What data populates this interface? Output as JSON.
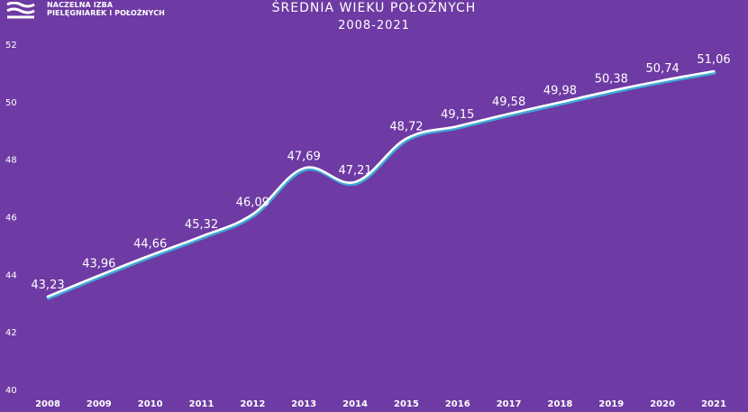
{
  "logo": {
    "line1": "NACZELNA IZBA",
    "line2": "PIELĘGNIAREK I POŁOŻNYCH"
  },
  "chart_data": {
    "type": "line",
    "title": "ŚREDNIA WIEKU POŁOŻNYCH",
    "subtitle": "2008-2021",
    "x": [
      "2008",
      "2009",
      "2010",
      "2011",
      "2012",
      "2013",
      "2014",
      "2015",
      "2016",
      "2017",
      "2018",
      "2019",
      "2020",
      "2021"
    ],
    "series": [
      {
        "values": [
          43.23,
          43.96,
          44.66,
          45.32,
          46.09,
          47.69,
          47.21,
          48.72,
          49.15,
          49.58,
          49.98,
          50.38,
          50.74,
          51.06
        ],
        "data_labels": [
          "43,23",
          "43,96",
          "44,66",
          "45,32",
          "46,09",
          "47,69",
          "47,21",
          "48,72",
          "49,15",
          "49,58",
          "49,98",
          "50,38",
          "50,74",
          "51,06"
        ]
      }
    ],
    "ylim": [
      40,
      52
    ],
    "yticks": [
      "40",
      "42",
      "44",
      "46",
      "48",
      "50",
      "52"
    ],
    "grid": false,
    "drop_lines": true,
    "colors": {
      "background": "#6e3aa3",
      "line": "#ffffff",
      "shadow": "#3fa8d6",
      "text": "#ffffff"
    }
  }
}
